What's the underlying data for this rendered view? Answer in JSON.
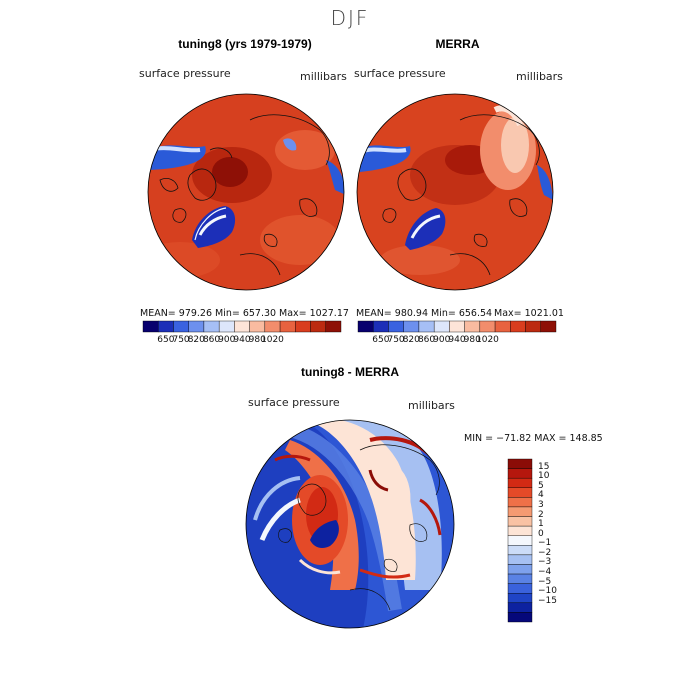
{
  "figure": {
    "title": "DJF"
  },
  "chart_data": [
    {
      "type": "heatmap",
      "title": "tuning8 (yrs 1979-1979)",
      "field_label": "surface pressure",
      "units_label": "millibars",
      "stats": {
        "mean": "979.26",
        "min": "657.30",
        "max": "1027.17"
      },
      "stats_text": {
        "mean": "MEAN= 979.26",
        "min": "Min= 657.30",
        "max": "Max= 1027.17"
      },
      "colorbar": {
        "levels": [
          650,
          750,
          820,
          860,
          900,
          940,
          980,
          1020
        ],
        "tick_labels": [
          "650",
          "750",
          "820",
          "860",
          "900",
          "940",
          "980",
          "1020"
        ],
        "colors": [
          "#08006e",
          "#1c2fb8",
          "#3a62e0",
          "#6d90ee",
          "#a6bff5",
          "#dde6fb",
          "#fde4d8",
          "#f9bba0",
          "#f28d6c",
          "#e8623f",
          "#d93d1e",
          "#bc2a10",
          "#8e1006"
        ]
      }
    },
    {
      "type": "heatmap",
      "title": "MERRA",
      "field_label": "surface pressure",
      "units_label": "millibars",
      "stats": {
        "mean": "980.94",
        "min": "656.54",
        "max": "1021.01"
      },
      "stats_text": {
        "mean": "MEAN= 980.94",
        "min": "Min= 656.54",
        "max": "Max= 1021.01"
      },
      "colorbar": {
        "levels": [
          650,
          750,
          820,
          860,
          900,
          940,
          980,
          1020
        ],
        "tick_labels": [
          "650",
          "750",
          "820",
          "860",
          "900",
          "940",
          "980",
          "1020"
        ],
        "colors": [
          "#08006e",
          "#1c2fb8",
          "#3a62e0",
          "#6d90ee",
          "#a6bff5",
          "#dde6fb",
          "#fde4d8",
          "#f9bba0",
          "#f28d6c",
          "#e8623f",
          "#d93d1e",
          "#bc2a10",
          "#8e1006"
        ]
      }
    },
    {
      "type": "heatmap",
      "title": "tuning8 - MERRA",
      "field_label": "surface pressure",
      "units_label": "millibars",
      "min_max_text": "MIN = −71.82  MAX = 148.85",
      "stats": {
        "min": -71.82,
        "max": 148.85
      },
      "colorbar": {
        "levels": [
          15,
          10,
          5,
          4,
          3,
          2,
          1,
          0,
          -1,
          -2,
          -3,
          -4,
          -5,
          -10,
          -15
        ],
        "tick_labels": [
          "15",
          "10",
          "5",
          "4",
          "3",
          "2",
          "1",
          "0",
          "−1",
          "−2",
          "−3",
          "−4",
          "−5",
          "−10",
          "−15"
        ],
        "colors": [
          "#8b0c07",
          "#b5170d",
          "#d22a14",
          "#e44a28",
          "#ef7048",
          "#f59a72",
          "#f9c2a4",
          "#fde4d6",
          "#f4f7fd",
          "#ccdcf8",
          "#a6c0f2",
          "#7ea1ec",
          "#5a82e4",
          "#3a62dc",
          "#1f44c6",
          "#0d22a0",
          "#05087a"
        ]
      }
    }
  ],
  "colors": {
    "land_red": "#d23a1c",
    "dark_red": "#a81a0a",
    "blue": "#2a5ad8",
    "light_blue": "#cfe0ff"
  }
}
